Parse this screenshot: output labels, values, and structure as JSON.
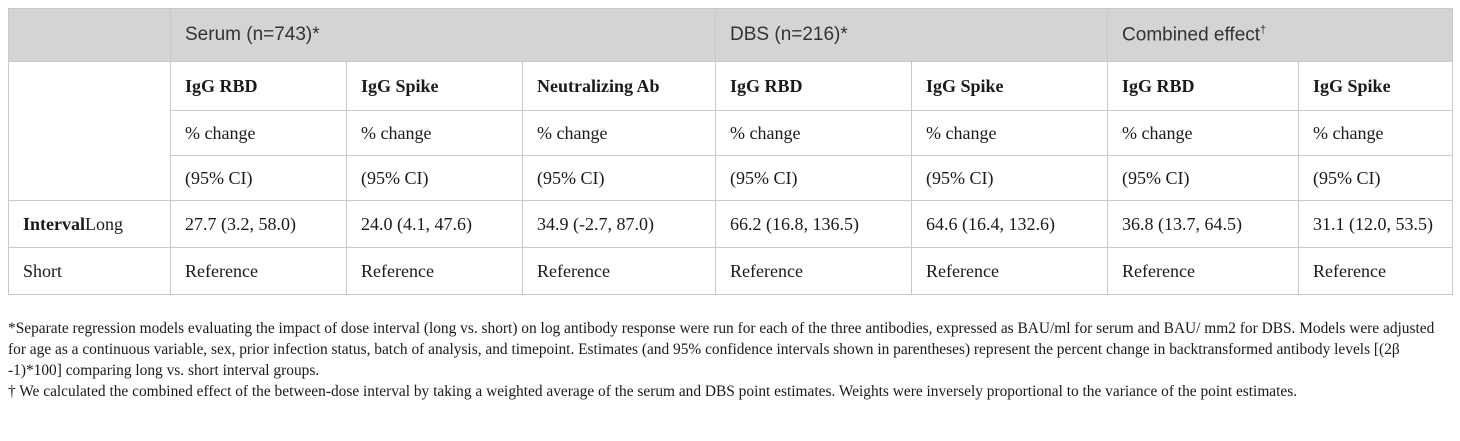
{
  "header_groups": [
    "Serum (n=743)*",
    "DBS (n=216)*",
    "Combined effect"
  ],
  "combined_mark": "†",
  "antibodies": [
    "IgG RBD",
    "IgG Spike",
    "Neutralizing Ab",
    "IgG RBD",
    "IgG Spike",
    "IgG RBD",
    "IgG Spike"
  ],
  "change_label": "% change",
  "ci_label": "(95% CI)",
  "rows": [
    {
      "label_bold": "Interval",
      "label": "Long",
      "values": [
        "27.7 (3.2, 58.0)",
        "24.0 (4.1, 47.6)",
        "34.9 (-2.7, 87.0)",
        "66.2 (16.8, 136.5)",
        "64.6 (16.4, 132.6)",
        "36.8 (13.7, 64.5)",
        "31.1 (12.0, 53.5)"
      ]
    },
    {
      "label": "Short",
      "values": [
        "Reference",
        "Reference",
        "Reference",
        "Reference",
        "Reference",
        "Reference",
        "Reference"
      ]
    }
  ],
  "footnotes": [
    "*Separate regression models evaluating the impact of dose interval (long vs. short) on log antibody response were run for each of the three antibodies, expressed as BAU/ml for serum and BAU/ mm2 for DBS. Models were adjusted for age as a continuous variable, sex, prior infection status, batch of analysis, and timepoint. Estimates (and 95% confidence intervals shown in parentheses) represent the percent change in backtransformed antibody levels [(2β -1)*100] comparing long vs. short interval groups.",
    "† We calculated the combined effect of the between-dose interval by taking a weighted average of the serum and DBS point estimates. Weights were inversely proportional to the variance of the point estimates."
  ]
}
